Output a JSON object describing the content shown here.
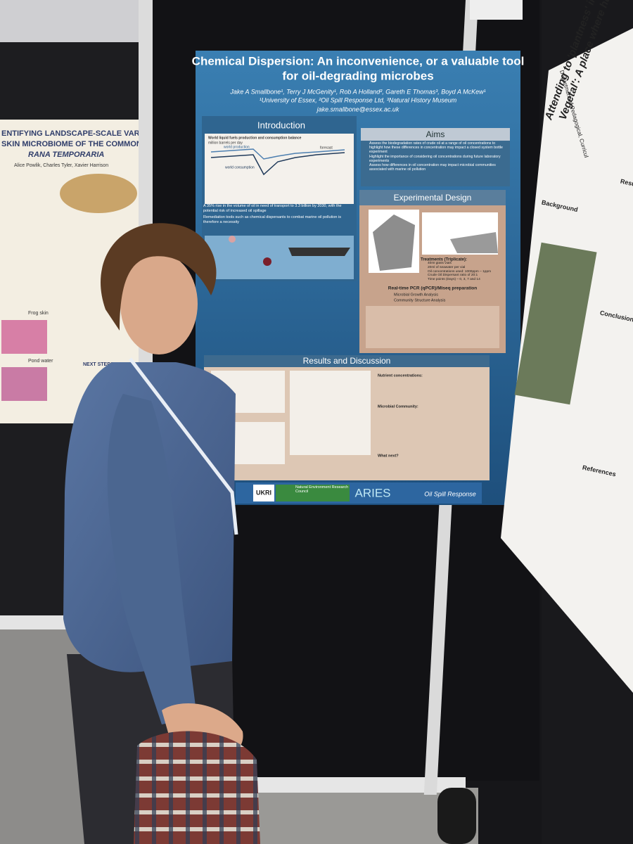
{
  "left_poster": {
    "title": "ENTIFYING LANDSCAPE-SCALE VARIATION",
    "title_line2": "SKIN MICROBIOME OF THE COMMON FRO",
    "title_line3": "RANA TEMPORARIA",
    "authors": "Alice Powlik, Charles Tyler, Xavier Harrison",
    "panel_1": "Frog skin",
    "panel_2": "Pond water",
    "next_steps": "NEXT STEPS"
  },
  "main_poster": {
    "title": "Chemical Dispersion: An inconvenience, or a valuable tool",
    "title_line2": "for oil-degrading microbes",
    "authors": "Jake A Smallbone¹, Terry J McGenity¹, Rob A Holland², Gareth E Thomas³, Boyd A McKew¹",
    "affiliations": "¹University of Essex, ²Oil Spill Response Ltd, ³Natural History Museum",
    "email": "jake.smallbone@essex.ac.uk",
    "introduction": {
      "heading": "Introduction",
      "chart_title": "World liquid fuels production and consumption balance",
      "chart_units": "million barrels per day",
      "legend_1": "world production",
      "legend_2": "world consumption",
      "legend_3": "forecast",
      "text_1": "A 35% rise in the volume of oil in need of transport to 3.3 billion by 2030, with the potential risk of increased oil spillage",
      "text_2": "Remediation tools such as chemical dispersants to combat marine oil pollution is therefore a necessity"
    },
    "aims": {
      "heading": "Aims",
      "items": [
        "Assess the biodegradation rates of crude oil at a range of oil concentrations to highlight how these differences in concentration may impact a closed system bottle experiment",
        "Highlight the importance of considering oil concentrations during future laboratory experiments",
        "Assess how differences in oil concentration may impact microbial communities associated with marine oil pollution"
      ]
    },
    "experimental_design": {
      "heading": "Experimental Design",
      "treatments": "Treatments (Triplicate):",
      "treatment_items": [
        "40ml glass vials",
        "20ml of seawater per vial",
        "Oil concentrations used: 1000ppm – 1ppm",
        "Crude Oil:Dispersant ratio of 20:1",
        "Time points (Days) – 0, 3, 7 and 14"
      ],
      "pcr": "Real-time PCR (qPCR)/Miseq preparation",
      "pcr_items": [
        "Microbial Growth Analysis",
        "Community Structure Analysis"
      ]
    },
    "results": {
      "heading": "Results and Discussion",
      "nutrient": "Nutrient concentrations:",
      "community": "Microbial Community:",
      "next": "What next?"
    },
    "logos": [
      "UKRI",
      "Natural Environment Research Council",
      "ARIES",
      "Oil Spill Response"
    ]
  },
  "right_poster": {
    "department": "Department of Pedagogical, Curricul",
    "title": "Attending to 'plantness' in Man",
    "title_line2": "Vegetal': A place where humans",
    "headings": [
      "Background",
      "Conclusion",
      "References",
      "Results"
    ]
  }
}
